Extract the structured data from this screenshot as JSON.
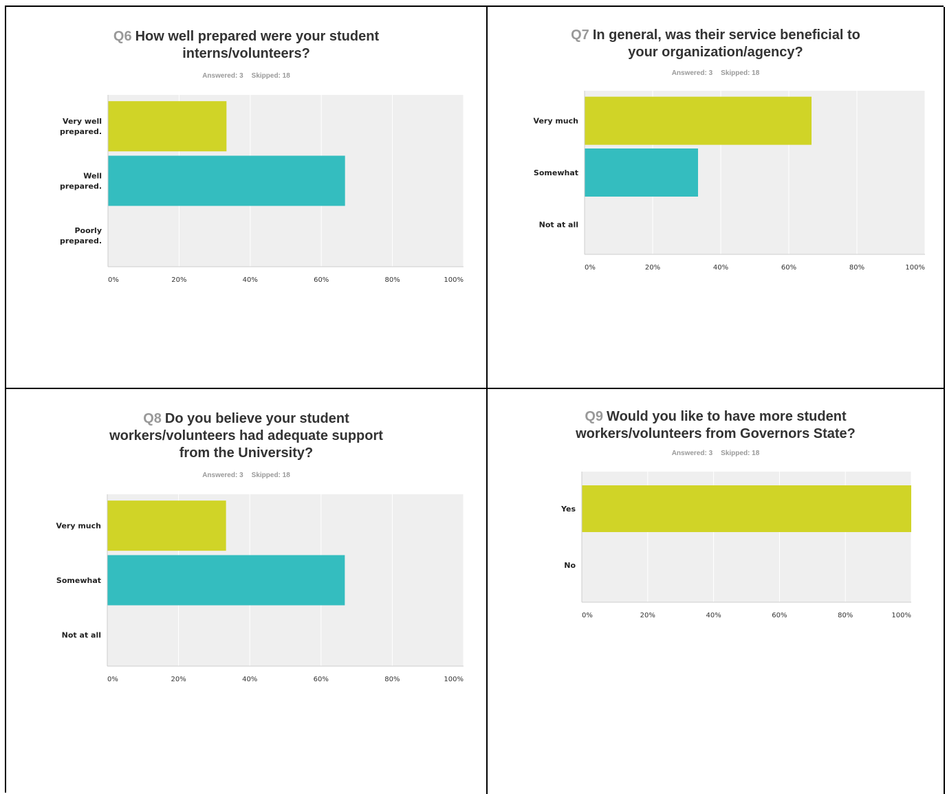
{
  "chart_data": [
    {
      "type": "bar",
      "orientation": "horizontal",
      "question_number": "Q6",
      "title": "How well prepared were your student interns/volunteers?",
      "title_lines": [
        "How well prepared were your student",
        "interns/volunteers?"
      ],
      "answered": "Answered: 3",
      "skipped": "Skipped: 18",
      "categories": [
        [
          "Very well",
          "prepared."
        ],
        [
          "Well",
          "prepared."
        ],
        [
          "Poorly",
          "prepared."
        ]
      ],
      "values": [
        33.33,
        66.67,
        0
      ],
      "colors": [
        "#d0d427",
        "#34bdbf",
        "#d0d427"
      ],
      "xticks": [
        "0%",
        "20%",
        "40%",
        "60%",
        "80%",
        "100%"
      ],
      "xlim": [
        0,
        100
      ],
      "grid": true
    },
    {
      "type": "bar",
      "orientation": "horizontal",
      "question_number": "Q7",
      "title": "In general, was their service beneficial to your organization/agency?",
      "title_lines": [
        "In general, was their service beneficial to",
        "your organization/agency?"
      ],
      "answered": "Answered: 3",
      "skipped": "Skipped: 18",
      "categories": [
        [
          "Very much"
        ],
        [
          "Somewhat"
        ],
        [
          "Not at all"
        ]
      ],
      "values": [
        66.67,
        33.33,
        0
      ],
      "colors": [
        "#d0d427",
        "#34bdbf",
        "#d0d427"
      ],
      "xticks": [
        "0%",
        "20%",
        "40%",
        "60%",
        "80%",
        "100%"
      ],
      "xlim": [
        0,
        100
      ],
      "grid": true
    },
    {
      "type": "bar",
      "orientation": "horizontal",
      "question_number": "Q8",
      "title": "Do you believe your student workers/volunteers had adequate support from the University?",
      "title_lines": [
        "Do you believe your student",
        "workers/volunteers had adequate support",
        "from the University?"
      ],
      "answered": "Answered: 3",
      "skipped": "Skipped: 18",
      "categories": [
        [
          "Very much"
        ],
        [
          "Somewhat"
        ],
        [
          "Not at all"
        ]
      ],
      "values": [
        33.33,
        66.67,
        0
      ],
      "colors": [
        "#d0d427",
        "#34bdbf",
        "#d0d427"
      ],
      "xticks": [
        "0%",
        "20%",
        "40%",
        "60%",
        "80%",
        "100%"
      ],
      "xlim": [
        0,
        100
      ],
      "grid": true
    },
    {
      "type": "bar",
      "orientation": "horizontal",
      "question_number": "Q9",
      "title": "Would you like to have more student workers/volunteers from Governors State?",
      "title_lines": [
        "Would you like to have more student",
        "workers/volunteers from Governors State?"
      ],
      "answered": "Answered: 3",
      "skipped": "Skipped: 18",
      "categories": [
        [
          "Yes"
        ],
        [
          "No"
        ]
      ],
      "values": [
        100,
        0
      ],
      "colors": [
        "#d0d427",
        "#34bdbf"
      ],
      "xticks": [
        "0%",
        "20%",
        "40%",
        "60%",
        "80%",
        "100%"
      ],
      "xlim": [
        0,
        100
      ],
      "grid": true
    }
  ]
}
